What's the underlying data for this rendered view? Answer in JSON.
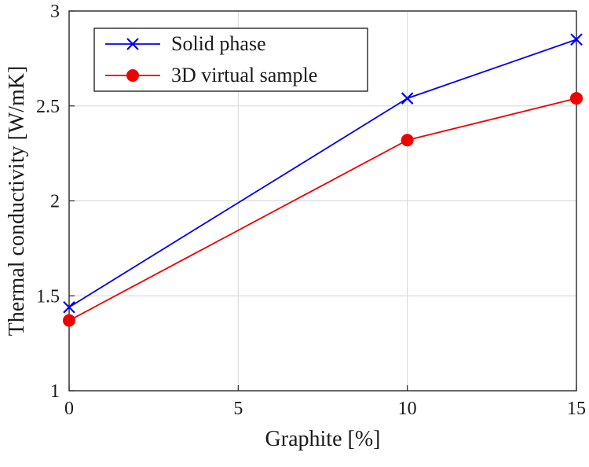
{
  "chart_data": {
    "type": "line",
    "title": "",
    "xlabel": "Graphite [%]",
    "ylabel": "Thermal conductivity [W/mK]",
    "xlim": [
      0,
      15
    ],
    "ylim": [
      1,
      3
    ],
    "xticks": [
      0,
      5,
      10,
      15
    ],
    "xtick_labels": [
      "0",
      "5",
      "10",
      "15"
    ],
    "yticks": [
      1,
      1.5,
      2,
      2.5,
      3
    ],
    "ytick_labels": [
      "1",
      "1.5",
      "2",
      "2.5",
      "3"
    ],
    "grid": true,
    "grid_color": "#d6d6d6",
    "axis_color": "#262626",
    "legend_position": "top-left",
    "x": [
      0,
      10,
      15
    ],
    "series": [
      {
        "name": "Solid phase",
        "color": "#0000f0",
        "marker": "x",
        "values": [
          1.44,
          2.54,
          2.85
        ]
      },
      {
        "name": "3D virtual sample",
        "color": "#f00000",
        "marker": "circle",
        "values": [
          1.37,
          2.32,
          2.54
        ]
      }
    ]
  }
}
